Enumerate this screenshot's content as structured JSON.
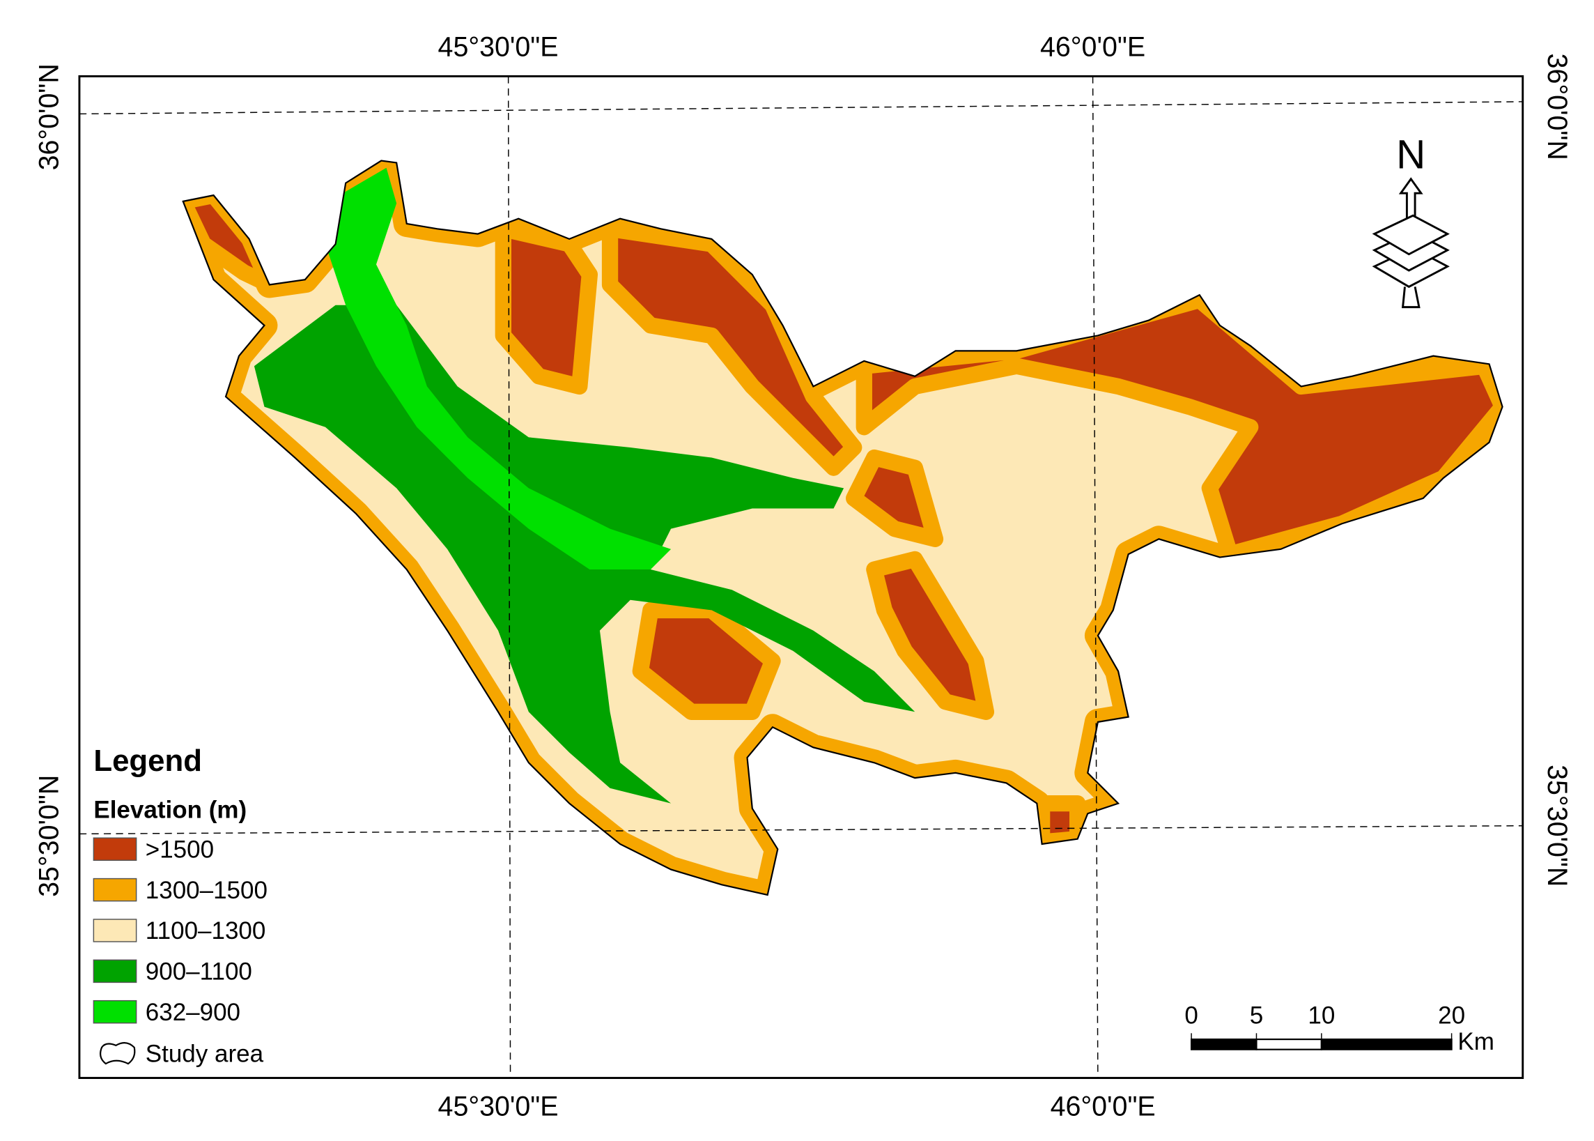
{
  "map_title_block": {
    "graticule": {
      "top": [
        "45°30'0\"E",
        "46°0'0\"E"
      ],
      "bottom": [
        "45°30'0\"E",
        "46°0'0\"E"
      ],
      "left": [
        "36°0'0\"N",
        "35°30'0\"N"
      ],
      "right": [
        "36°0'0\"N",
        "35°30'0\"N"
      ]
    },
    "legend": {
      "title": "Legend",
      "subtitle": "Elevation (m)",
      "items": [
        {
          "label": ">1500",
          "color": "#c23b0b"
        },
        {
          "label": "1300–1500",
          "color": "#f6a600"
        },
        {
          "label": "1100–1300",
          "color": "#fde8b6"
        },
        {
          "label": "900–1100",
          "color": "#00a300"
        },
        {
          "label": "632–900",
          "color": "#00e000"
        }
      ],
      "study_area": "Study area"
    },
    "scale_bar": {
      "ticks": [
        0,
        5,
        10,
        20
      ],
      "unit": "Km"
    },
    "north_arrow": "N"
  }
}
